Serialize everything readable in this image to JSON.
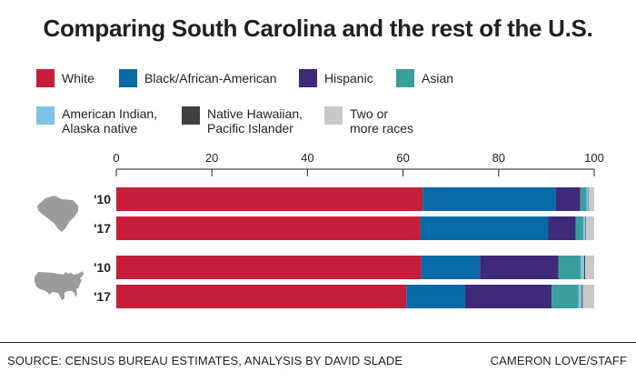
{
  "chart_data": {
    "type": "bar",
    "orientation": "horizontal",
    "stacked": true,
    "title": "Comparing South Carolina and the rest of the U.S.",
    "xlim": [
      0,
      100
    ],
    "x_ticks": [
      "0",
      "20",
      "40",
      "60",
      "80",
      "100"
    ],
    "grid": false,
    "legend_position": "top",
    "groups": [
      {
        "label": "South Carolina",
        "icon": "south-carolina-map-icon"
      },
      {
        "label": "U.S.",
        "icon": "usa-map-icon"
      }
    ],
    "categories": [
      "'10",
      "'17",
      "'10",
      "'17"
    ],
    "series": [
      {
        "name": "White",
        "color": "#c41e3a",
        "values": [
          64.1,
          63.6,
          63.8,
          60.7
        ]
      },
      {
        "name": "Black/African-American",
        "color": "#0a6aa8",
        "values": [
          27.9,
          26.8,
          12.3,
          12.3
        ]
      },
      {
        "name": "Hispanic",
        "color": "#3f2a7a",
        "values": [
          5.1,
          5.7,
          16.4,
          18.1
        ]
      },
      {
        "name": "Asian",
        "color": "#3a9e9c",
        "values": [
          1.3,
          1.6,
          4.7,
          5.6
        ]
      },
      {
        "name": "American Indian, Alaska native",
        "color": "#7fc3e6",
        "values": [
          0.4,
          0.4,
          0.7,
          0.7
        ]
      },
      {
        "name": "Native Hawaiian, Pacific Islander",
        "color": "#414142",
        "values": [
          0.1,
          0.1,
          0.2,
          0.2
        ]
      },
      {
        "name": "Two or more races",
        "color": "#c8c8c9",
        "values": [
          1.1,
          1.8,
          1.9,
          2.4
        ]
      }
    ]
  },
  "legend": [
    {
      "lines": [
        "White"
      ]
    },
    {
      "lines": [
        "Black/African-American"
      ]
    },
    {
      "lines": [
        "Hispanic"
      ]
    },
    {
      "lines": [
        "Asian"
      ]
    },
    {
      "lines": [
        "American Indian,",
        "Alaska native"
      ]
    },
    {
      "lines": [
        "Native Hawaiian,",
        "Pacific Islander"
      ]
    },
    {
      "lines": [
        "Two or",
        "more races"
      ]
    }
  ],
  "footer": {
    "source": "SOURCE: CENSUS BUREAU ESTIMATES, ANALYSIS BY DAVID SLADE",
    "credit": "CAMERON LOVE/STAFF"
  }
}
